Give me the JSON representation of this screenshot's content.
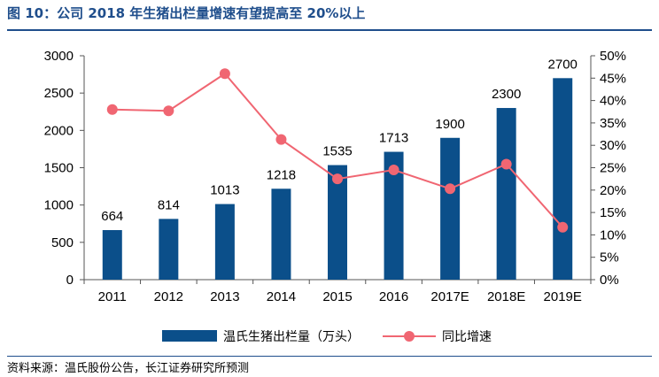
{
  "header": {
    "title": "图 10：公司 2018 年生猪出栏量增速有望提高至 20%以上"
  },
  "footer": {
    "source": "资料来源：温氏股份公告，长江证券研究所预测"
  },
  "colors": {
    "bar": "#0b4f8a",
    "line": "#f06672",
    "title": "#1f4e8c",
    "axis": "#555555"
  },
  "chart_data": {
    "type": "bar",
    "categories": [
      "2011",
      "2012",
      "2013",
      "2014",
      "2015",
      "2016",
      "2017E",
      "2018E",
      "2019E"
    ],
    "series": [
      {
        "name": "温氏生猪出栏量（万头）",
        "type": "bar",
        "axis": "left",
        "values": [
          664,
          814,
          1013,
          1218,
          1535,
          1713,
          1900,
          2300,
          2700
        ],
        "data_labels": [
          "664",
          "814",
          "1013",
          "1218",
          "1535",
          "1713",
          "1900",
          "2300",
          "2700"
        ]
      },
      {
        "name": "同比增速",
        "type": "line",
        "axis": "right",
        "values": [
          0.38,
          0.377,
          0.46,
          0.313,
          0.225,
          0.245,
          0.203,
          0.258,
          0.117
        ]
      }
    ],
    "y_left": {
      "ylim": [
        0,
        3000
      ],
      "ticks": [
        0,
        500,
        1000,
        1500,
        2000,
        2500,
        3000
      ],
      "tick_labels": [
        "0",
        "500",
        "1000",
        "1500",
        "2000",
        "2500",
        "3000"
      ]
    },
    "y_right": {
      "ylim": [
        0,
        0.5
      ],
      "ticks": [
        0,
        0.05,
        0.1,
        0.15,
        0.2,
        0.25,
        0.3,
        0.35,
        0.4,
        0.45,
        0.5
      ],
      "tick_labels": [
        "0%",
        "5%",
        "10%",
        "15%",
        "20%",
        "25%",
        "30%",
        "35%",
        "40%",
        "45%",
        "50%"
      ]
    },
    "grid": false,
    "legend_position": "bottom"
  }
}
